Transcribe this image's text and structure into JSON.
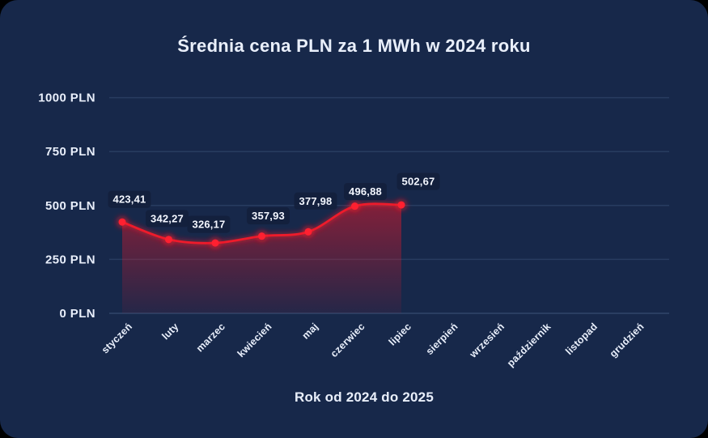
{
  "page": {
    "title": "Średnia cena PLN za 1 MWh w 2024 roku",
    "x_axis_title": "Rok od 2024 do 2025"
  },
  "chart_data": {
    "type": "area",
    "title": "Średnia cena PLN za 1 MWh w 2024 roku",
    "xlabel": "Rok od 2024 do 2025",
    "ylabel": "",
    "categories": [
      "styczeń",
      "luty",
      "marzec",
      "kwiecień",
      "maj",
      "czerwiec",
      "lipiec",
      "sierpień",
      "wrzesień",
      "październik",
      "listopad",
      "grudzień"
    ],
    "series": [
      {
        "name": "Średnia cena PLN za 1 MWh",
        "values": [
          423.41,
          342.27,
          326.17,
          357.93,
          377.98,
          496.88,
          502.67
        ],
        "value_labels": [
          "423,41",
          "342,27",
          "326,17",
          "357,93",
          "377,98",
          "496,88",
          "502,67"
        ]
      }
    ],
    "ylim": [
      0,
      1000
    ],
    "yticks": [
      {
        "value": 0,
        "label": "0 PLN"
      },
      {
        "value": 250,
        "label": "250 PLN"
      },
      {
        "value": 500,
        "label": "500 PLN"
      },
      {
        "value": 750,
        "label": "750 PLN"
      },
      {
        "value": 1000,
        "label": "1000 PLN"
      }
    ],
    "grid": true,
    "legend": false
  },
  "colors": {
    "page_background": "#000000",
    "card_background": "#17284a",
    "text_primary": "#e9effb",
    "gridline": "#3a5076",
    "line": "#ee1b2b",
    "point_core": "#ff2030",
    "area_fill": "#e5182b",
    "value_label_background": "#131f3c"
  }
}
